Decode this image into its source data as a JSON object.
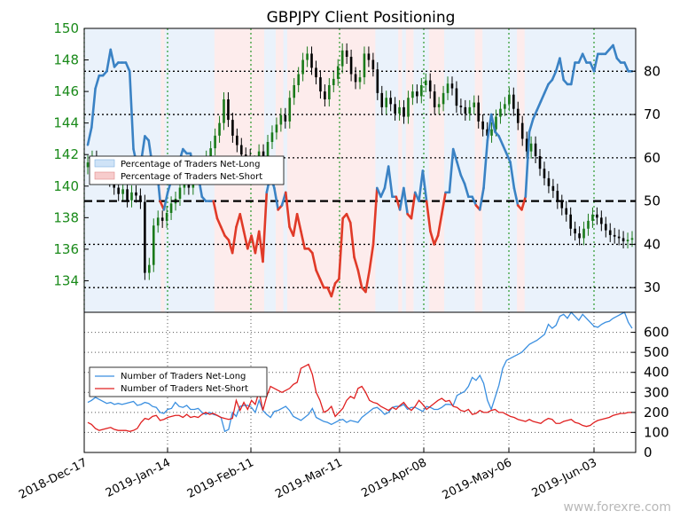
{
  "chart_data": [
    {
      "type": "line",
      "title": "GBPJPY Client Positioning",
      "x_ticks": [
        "2018-Dec-17",
        "2019-Jan-14",
        "2019-Feb-11",
        "2019-Mar-11",
        "2019-Apr-08",
        "2019-May-06",
        "2019-Jun-03"
      ],
      "price_axis": {
        "ticks": [
          134,
          136,
          138,
          140,
          142,
          144,
          146,
          148,
          150
        ],
        "range": [
          132,
          150
        ]
      },
      "percent_axis": {
        "ticks": [
          30,
          40,
          50,
          60,
          70,
          80
        ],
        "range": [
          24.3,
          89.9
        ],
        "reference_line": 50
      },
      "legend": [
        "Percentage of Traders Net-Long",
        "Percentage of Traders Net-Short"
      ],
      "legend_position": "middle-left",
      "grid": true,
      "colors": {
        "net_long": "#3a82c4",
        "net_short": "#e03a28",
        "candle_up": "#1a7a1a",
        "candle_down": "#000000",
        "price_ticks": "#1a8a1a"
      },
      "sentiment_pct": [
        63,
        67,
        76,
        79,
        79,
        80,
        85,
        81,
        82,
        82,
        82,
        80,
        62,
        58,
        59,
        65,
        64,
        58,
        59,
        50,
        48,
        52,
        55,
        60,
        59,
        62,
        61,
        61,
        56,
        56,
        51,
        50,
        50,
        50,
        46,
        44,
        42,
        41,
        38,
        44,
        47,
        43,
        39,
        42,
        38,
        43,
        36,
        52,
        56,
        53,
        48,
        49,
        52,
        44,
        42,
        47,
        43,
        39,
        39,
        38,
        34,
        32,
        30,
        30,
        28,
        31,
        32,
        46,
        47,
        45,
        37,
        34,
        30,
        29,
        34,
        40,
        53,
        51,
        53,
        58,
        51,
        51,
        48,
        53,
        47,
        46,
        52,
        50,
        57,
        50,
        43,
        40,
        42,
        47,
        52,
        52,
        62,
        59,
        56,
        54,
        51,
        51,
        49,
        48,
        53,
        64,
        70,
        66,
        65,
        63,
        61,
        59,
        53,
        49,
        48,
        51,
        66,
        69,
        71,
        73,
        75,
        77,
        78,
        80,
        83,
        78,
        77,
        77,
        82,
        82,
        84,
        82,
        82,
        80,
        84,
        84,
        84,
        85,
        86,
        83,
        82,
        82,
        80,
        80
      ],
      "price_ohlc_note": "daily candles ranging from about 133 to 149",
      "price_close": [
        141.5,
        141.8,
        141.3,
        140.8,
        140.6,
        140.4,
        139.9,
        139.5,
        139.8,
        139.1,
        139.6,
        139.4,
        139.0,
        134.5,
        135.0,
        137.5,
        138.0,
        137.8,
        138.3,
        138.9,
        139.2,
        139.9,
        140.4,
        139.9,
        140.6,
        141.0,
        140.7,
        141.8,
        142.4,
        143.2,
        144.0,
        145.5,
        144.2,
        143.2,
        142.6,
        142.0,
        141.9,
        141.1,
        141.5,
        142.2,
        141.8,
        142.8,
        143.4,
        143.9,
        144.5,
        144.1,
        145.6,
        146.4,
        147.1,
        148.0,
        148.4,
        147.5,
        146.9,
        146.0,
        145.5,
        146.4,
        146.8,
        147.6,
        148.6,
        148.2,
        147.1,
        146.6,
        146.9,
        148.4,
        148.0,
        147.4,
        145.9,
        145.0,
        145.6,
        145.2,
        144.6,
        145.0,
        144.4,
        145.6,
        146.0,
        145.7,
        146.4,
        146.7,
        146.0,
        145.0,
        145.2,
        145.9,
        146.5,
        146.2,
        145.1,
        145.0,
        144.6,
        145.0,
        145.3,
        144.1,
        143.6,
        143.2,
        143.6,
        144.4,
        144.9,
        145.2,
        145.8,
        144.9,
        144.0,
        143.0,
        142.2,
        142.7,
        141.9,
        141.1,
        140.5,
        140.0,
        139.7,
        139.0,
        138.6,
        138.2,
        137.3,
        137.0,
        136.7,
        137.3,
        137.8,
        138.2,
        138.0,
        137.6,
        137.2,
        136.9,
        136.8,
        136.7,
        136.5,
        136.6,
        136.7
      ],
      "series": [
        {
          "name": "Number of Traders Net-Long",
          "values": [
            250,
            260,
            275,
            265,
            255,
            245,
            250,
            240,
            245,
            240,
            245,
            250,
            255,
            235,
            240,
            250,
            245,
            230,
            225,
            200,
            195,
            215,
            220,
            250,
            230,
            225,
            235,
            215,
            215,
            220,
            200,
            190,
            200,
            190,
            185,
            175,
            105,
            115,
            200,
            180,
            230,
            235,
            235,
            225,
            200,
            260,
            210,
            190,
            175,
            205,
            210,
            220,
            230,
            210,
            180,
            170,
            160,
            175,
            190,
            220,
            175,
            165,
            155,
            150,
            140,
            150,
            160,
            165,
            150,
            160,
            155,
            150,
            175,
            190,
            205,
            220,
            225,
            210,
            190,
            200,
            225,
            230,
            230,
            240,
            215,
            225,
            225,
            215,
            205,
            230,
            225,
            215,
            215,
            225,
            240,
            240,
            235,
            285,
            295,
            305,
            330,
            375,
            360,
            385,
            345,
            260,
            215,
            275,
            335,
            420,
            460,
            470,
            480,
            490,
            500,
            520,
            540,
            550,
            560,
            575,
            590,
            640,
            620,
            635,
            680,
            690,
            670,
            700,
            680,
            660,
            690,
            670,
            650,
            630,
            625,
            640,
            650,
            655,
            670,
            680,
            690,
            700,
            650,
            620
          ]
        },
        {
          "name": "Number of Traders Net-Short",
          "values": [
            150,
            140,
            120,
            110,
            115,
            120,
            125,
            115,
            110,
            110,
            110,
            105,
            110,
            120,
            150,
            170,
            165,
            180,
            185,
            160,
            165,
            175,
            180,
            185,
            185,
            175,
            190,
            175,
            180,
            175,
            190,
            200,
            190,
            195,
            185,
            175,
            170,
            165,
            170,
            260,
            210,
            250,
            215,
            260,
            240,
            305,
            210,
            280,
            330,
            320,
            310,
            300,
            310,
            320,
            340,
            350,
            420,
            430,
            440,
            390,
            300,
            260,
            200,
            210,
            230,
            180,
            200,
            220,
            260,
            280,
            270,
            320,
            330,
            300,
            260,
            250,
            245,
            230,
            220,
            210,
            225,
            215,
            235,
            250,
            225,
            210,
            230,
            260,
            240,
            215,
            230,
            245,
            260,
            270,
            255,
            260,
            230,
            225,
            210,
            205,
            215,
            190,
            195,
            210,
            200,
            200,
            210,
            215,
            200,
            200,
            190,
            180,
            175,
            165,
            160,
            155,
            165,
            155,
            150,
            145,
            160,
            170,
            165,
            145,
            145,
            155,
            160,
            165,
            150,
            145,
            135,
            130,
            135,
            150,
            160,
            165,
            170,
            175,
            185,
            190,
            195,
            195,
            200,
            200
          ]
        }
      ],
      "lower_axis": {
        "ticks": [
          0,
          100,
          200,
          300,
          400,
          500,
          600
        ],
        "range": [
          0,
          700
        ]
      },
      "lower_legend_position": "middle-left"
    }
  ],
  "watermark": "www.forexre.com"
}
